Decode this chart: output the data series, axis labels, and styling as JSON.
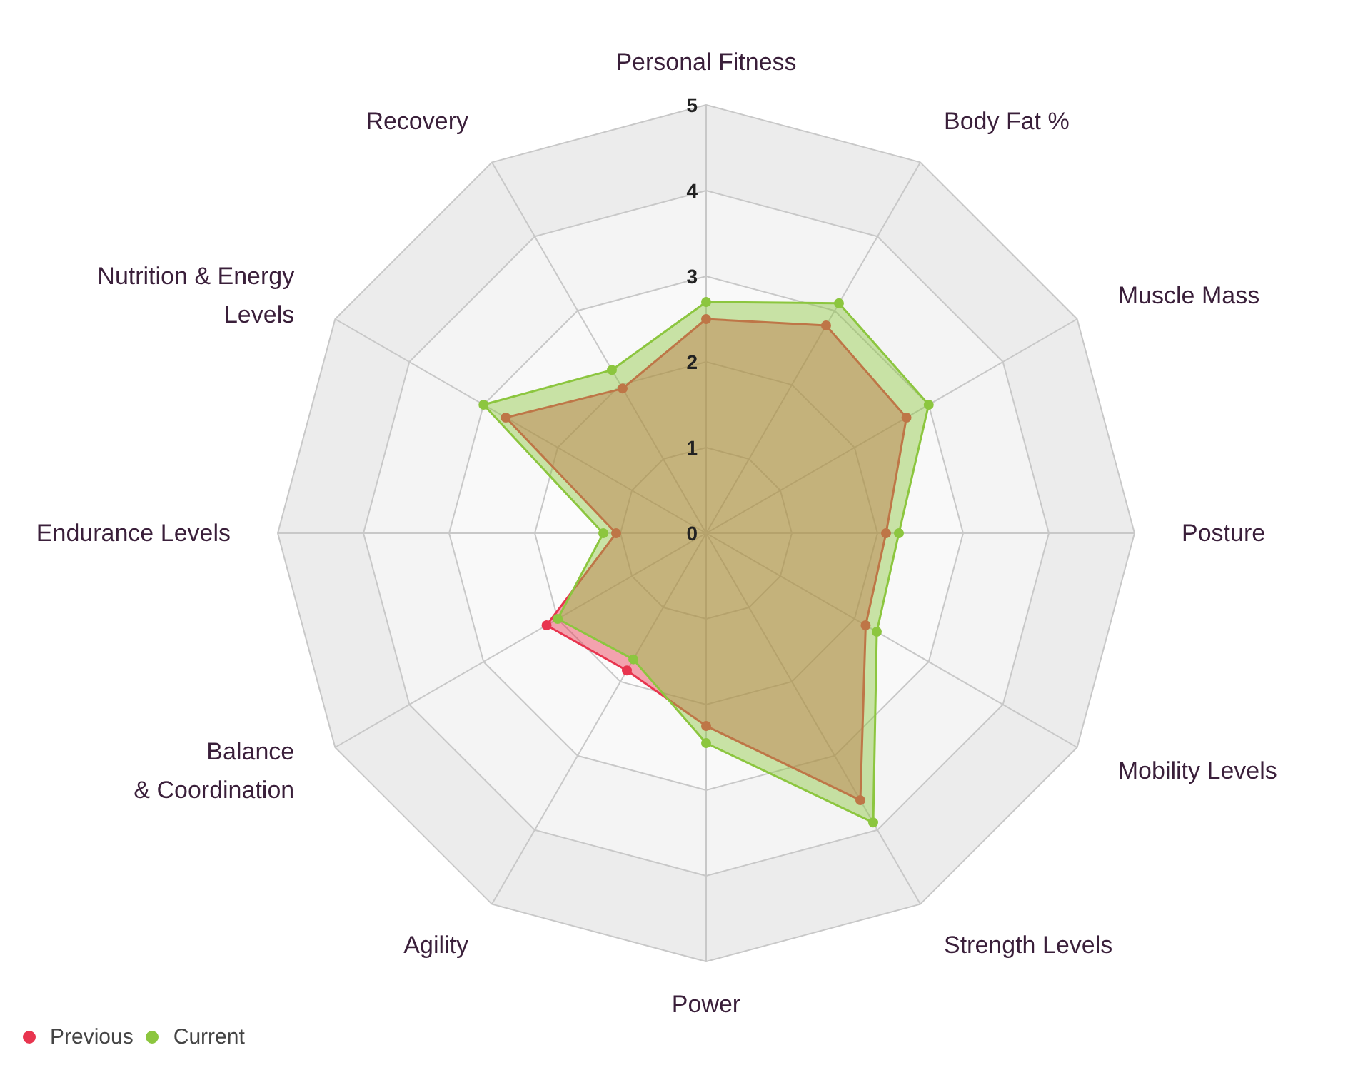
{
  "chart_data": {
    "type": "radar",
    "categories": [
      "Personal Fitness",
      "Body Fat %",
      "Muscle Mass",
      "Posture",
      "Mobility Levels",
      "Strength Levels",
      "Power",
      "Agility",
      "Balance\n& Coordination",
      "Endurance Levels",
      "Nutrition & Energy\nLevels",
      "Recovery"
    ],
    "series": [
      {
        "name": "Previous",
        "color": "#e8354f",
        "values": [
          2.5,
          2.8,
          2.7,
          2.1,
          2.15,
          3.6,
          2.25,
          1.85,
          2.15,
          1.05,
          2.7,
          1.95
        ]
      },
      {
        "name": "Current",
        "color": "#8cc63f",
        "values": [
          2.7,
          3.1,
          3.0,
          2.25,
          2.3,
          3.9,
          2.45,
          1.7,
          2.0,
          1.2,
          3.0,
          2.2
        ]
      }
    ],
    "ylim": [
      0,
      5
    ],
    "yticks": [
      0,
      1,
      2,
      3,
      4,
      5
    ],
    "grid": true,
    "legend": "bottom left",
    "marker": "circle"
  }
}
